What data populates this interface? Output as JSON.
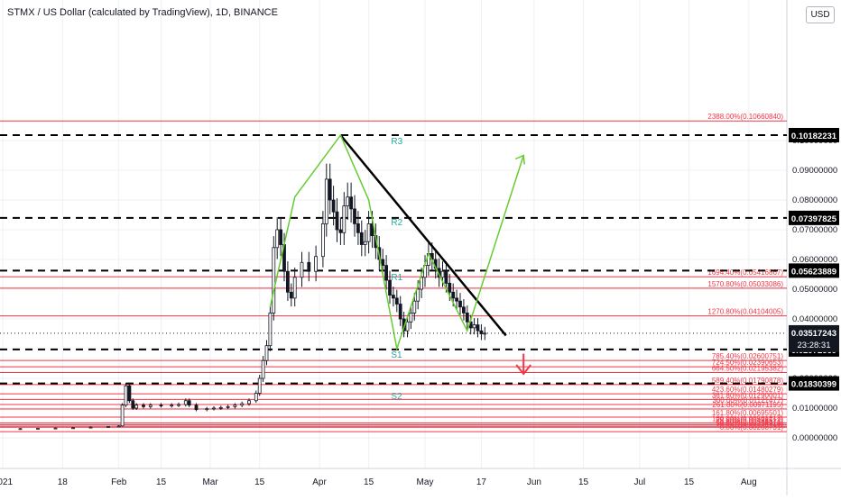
{
  "header": {
    "title": "STMX / US Dollar (calculated by TradingView), 1D, BINANCE",
    "currency": "USD"
  },
  "colors": {
    "candle": "#131722",
    "red_line": "#f23645",
    "green_line": "#66cc33",
    "trend_line": "#000000",
    "grid": "#eef0f3"
  },
  "price_axis": {
    "min": 0.0,
    "max": 0.1,
    "ticks": [
      "0.00000000",
      "0.01000000",
      "0.02000000",
      "0.03000000",
      "0.04000000",
      "0.05000000",
      "0.06000000",
      "0.07000000",
      "0.08000000",
      "0.09000000",
      "0.10000000"
    ]
  },
  "time_axis": {
    "ticks": [
      "2021",
      "18",
      "Feb",
      "15",
      "Mar",
      "15",
      "Apr",
      "15",
      "May",
      "17",
      "Jun",
      "15",
      "Jul",
      "15",
      "Aug"
    ]
  },
  "fib_levels": [
    {
      "label": "2388.00%(0.10660840)",
      "price": 0.1066084
    },
    {
      "label": "1694.40%(0.05416867)",
      "price": 0.05416867
    },
    {
      "label": "1570.80%(0.05033086)",
      "price": 0.05033086
    },
    {
      "label": "1270.80%(0.04104005)",
      "price": 0.04104005
    },
    {
      "label": "785.40%(0.02600751)",
      "price": 0.02600751
    },
    {
      "label": "724.50%(0.02390653)",
      "price": 0.02390653
    },
    {
      "label": "664.50%(0.02195382)",
      "price": 0.02195382
    },
    {
      "label": "589.40%(0.01790878)",
      "price": 0.01790878
    },
    {
      "label": "423.60%(0.01480279)",
      "price": 0.01480279
    },
    {
      "label": "361.80%(0.01290001)",
      "price": 0.01290001
    },
    {
      "label": "300.00%(0.01121477)",
      "price": 0.01121477
    },
    {
      "label": "261.80%(0.00971195)",
      "price": 0.00971195
    },
    {
      "label": "161.80%(0.00695501)",
      "price": 0.00695501
    },
    {
      "label": "100.00%(0.00501217)",
      "price": 0.00501217
    },
    {
      "label": "78.60%(0.00438512)",
      "price": 0.00438512
    },
    {
      "label": "61.80%(0.00389371)",
      "price": 0.00389371
    },
    {
      "label": "50.00%(0.00354918)",
      "price": 0.00354918
    },
    {
      "label": "0.00%(0.00208731)",
      "price": 0.00208731
    }
  ],
  "sr_levels": [
    {
      "price_label": "0.10182231",
      "price": 0.10182231
    },
    {
      "price_label": "0.07397825",
      "price": 0.07397825
    },
    {
      "price_label": "0.05623889",
      "price": 0.05623889
    },
    {
      "price_label": "0.02972569",
      "price": 0.02972569
    },
    {
      "price_label": "0.01830399",
      "price": 0.01830399
    }
  ],
  "pivot_labels": [
    {
      "text": "R3",
      "day": 96,
      "price": 0.1
    },
    {
      "text": "R2",
      "day": 96,
      "price": 0.0728
    },
    {
      "text": "R1",
      "day": 96,
      "price": 0.0542
    },
    {
      "text": "S1",
      "day": 96,
      "price": 0.0282
    },
    {
      "text": "S2",
      "day": 96,
      "price": 0.0143
    }
  ],
  "current_price": {
    "value": "0.03517243",
    "countdown": "23:28:31",
    "price": 0.03517243
  },
  "chart_data": {
    "type": "candlestick",
    "title": "STMX / US Dollar (calculated by TradingView), 1D, BINANCE",
    "x_unit": "days since 2021-01-01",
    "ylim": [
      0.0,
      0.1
    ],
    "daily_close": [
      [
        0,
        0.003
      ],
      [
        5,
        0.0031
      ],
      [
        10,
        0.0032
      ],
      [
        15,
        0.0033
      ],
      [
        20,
        0.0034
      ],
      [
        25,
        0.0036
      ],
      [
        30,
        0.0038
      ],
      [
        33,
        0.004
      ],
      [
        34,
        0.011
      ],
      [
        35,
        0.0175
      ],
      [
        36,
        0.0125
      ],
      [
        37,
        0.01
      ],
      [
        38,
        0.011
      ],
      [
        40,
        0.0105
      ],
      [
        42,
        0.011
      ],
      [
        45,
        0.0108
      ],
      [
        48,
        0.011
      ],
      [
        50,
        0.0112
      ],
      [
        52,
        0.0125
      ],
      [
        53,
        0.011
      ],
      [
        55,
        0.0095
      ],
      [
        58,
        0.0098
      ],
      [
        60,
        0.01
      ],
      [
        62,
        0.0102
      ],
      [
        64,
        0.0105
      ],
      [
        66,
        0.011
      ],
      [
        68,
        0.0115
      ],
      [
        70,
        0.0125
      ],
      [
        72,
        0.015
      ],
      [
        73,
        0.02
      ],
      [
        74,
        0.026
      ],
      [
        75,
        0.031
      ],
      [
        76,
        0.042
      ],
      [
        77,
        0.064
      ],
      [
        78,
        0.07
      ],
      [
        79,
        0.065
      ],
      [
        80,
        0.056
      ],
      [
        81,
        0.049
      ],
      [
        82,
        0.047
      ],
      [
        83,
        0.054
      ],
      [
        85,
        0.059
      ],
      [
        87,
        0.056
      ],
      [
        89,
        0.061
      ],
      [
        91,
        0.072
      ],
      [
        92,
        0.087
      ],
      [
        93,
        0.08
      ],
      [
        94,
        0.076
      ],
      [
        95,
        0.07
      ],
      [
        96,
        0.069
      ],
      [
        97,
        0.078
      ],
      [
        98,
        0.081
      ],
      [
        99,
        0.077
      ],
      [
        100,
        0.072
      ],
      [
        101,
        0.069
      ],
      [
        102,
        0.065
      ],
      [
        103,
        0.066
      ],
      [
        104,
        0.072
      ],
      [
        105,
        0.068
      ],
      [
        106,
        0.064
      ],
      [
        107,
        0.06
      ],
      [
        108,
        0.058
      ],
      [
        109,
        0.053
      ],
      [
        110,
        0.048
      ],
      [
        111,
        0.047
      ],
      [
        112,
        0.045
      ],
      [
        113,
        0.04
      ],
      [
        114,
        0.036
      ],
      [
        115,
        0.039
      ],
      [
        116,
        0.042
      ],
      [
        117,
        0.046
      ],
      [
        118,
        0.05
      ],
      [
        119,
        0.054
      ],
      [
        120,
        0.058
      ],
      [
        121,
        0.062
      ],
      [
        122,
        0.06
      ],
      [
        123,
        0.057
      ],
      [
        124,
        0.054
      ],
      [
        125,
        0.056
      ],
      [
        126,
        0.052
      ],
      [
        127,
        0.049
      ],
      [
        128,
        0.047
      ],
      [
        129,
        0.046
      ],
      [
        130,
        0.044
      ],
      [
        131,
        0.042
      ],
      [
        132,
        0.039
      ],
      [
        133,
        0.037
      ],
      [
        134,
        0.038
      ],
      [
        135,
        0.036
      ],
      [
        136,
        0.035
      ],
      [
        137,
        0.0352
      ]
    ],
    "annotations": {
      "descending_trendline": [
        [
          0.1018,
          96
        ],
        [
          0.0344,
          143
        ]
      ],
      "green_path": [
        [
          0.044,
          76
        ],
        [
          0.081,
          83
        ],
        [
          0.1018,
          96
        ],
        [
          0.08,
          104
        ],
        [
          0.03,
          112
        ],
        [
          0.062,
          121
        ],
        [
          0.036,
          132
        ],
        [
          0.095,
          148
        ]
      ],
      "red_down_arrow": {
        "from": [
          0.0283,
          148
        ],
        "to": [
          0.0215,
          148
        ]
      }
    }
  }
}
